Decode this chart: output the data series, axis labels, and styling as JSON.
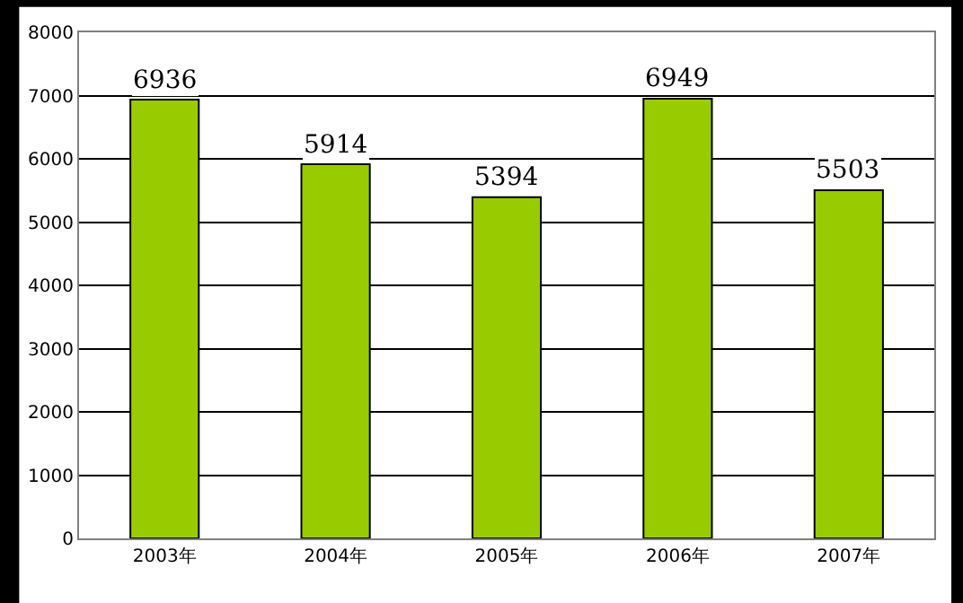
{
  "chart_data": {
    "type": "bar",
    "categories": [
      "2003年",
      "2004年",
      "2005年",
      "2006年",
      "2007年"
    ],
    "values": [
      6936,
      5914,
      5394,
      6949,
      5503
    ],
    "color": "#99cc00",
    "ylim": [
      0,
      8000
    ],
    "yticks": [
      0,
      1000,
      2000,
      3000,
      4000,
      5000,
      6000,
      7000,
      8000
    ],
    "grid": "y",
    "data_labels": true
  }
}
